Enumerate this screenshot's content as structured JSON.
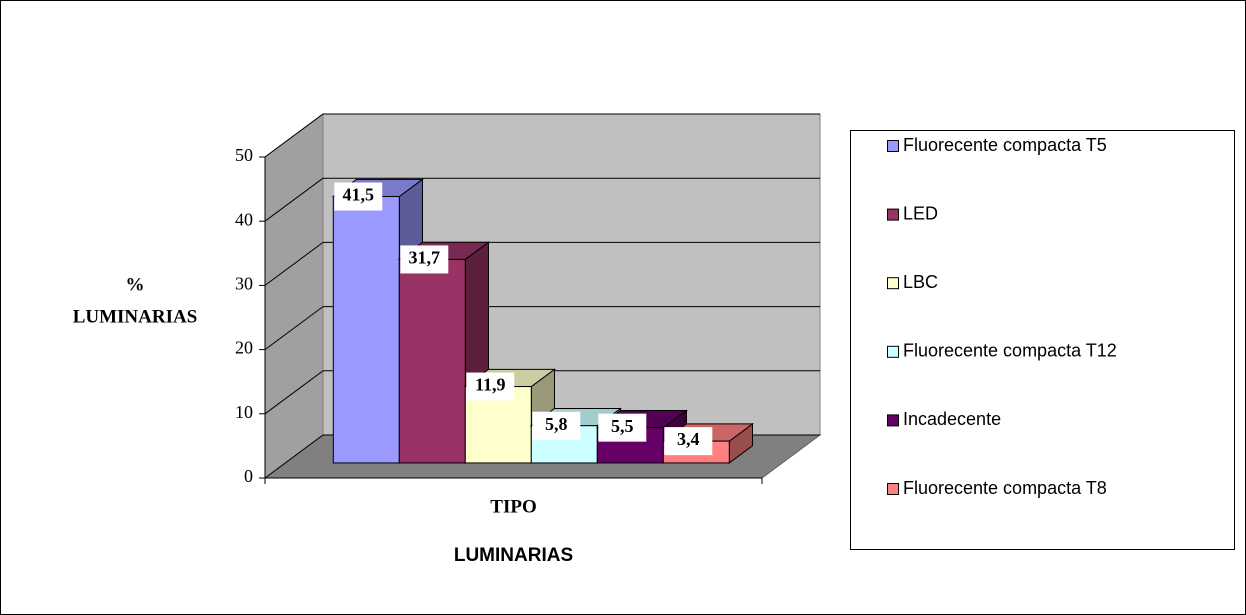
{
  "chart_data": {
    "type": "bar3d",
    "categories": [
      "TIPO"
    ],
    "x_label": "LUMINARIAS",
    "y_label_lines": [
      "%",
      "LUMINARIAS"
    ],
    "ylim": [
      0,
      50
    ],
    "yticks": [
      0,
      10,
      20,
      30,
      40,
      50
    ],
    "grid": true,
    "legend": "right",
    "series": [
      {
        "name": "Fluorecente compacta T5",
        "color": "#9999ff",
        "values": [
          41.5
        ],
        "value_labels": [
          "41,5"
        ]
      },
      {
        "name": "LED",
        "color": "#993366",
        "values": [
          31.7
        ],
        "value_labels": [
          "31,7"
        ]
      },
      {
        "name": "LBC",
        "color": "#ffffcc",
        "values": [
          11.9
        ],
        "value_labels": [
          "11,9"
        ]
      },
      {
        "name": "Fluorecente compacta T12",
        "color": "#ccffff",
        "values": [
          5.8
        ],
        "value_labels": [
          "5,8"
        ]
      },
      {
        "name": "Incadecente",
        "color": "#660066",
        "values": [
          5.5
        ],
        "value_labels": [
          "5,5"
        ]
      },
      {
        "name": "Fluorecente compacta T8",
        "color": "#ff8080",
        "values": [
          3.4
        ],
        "value_labels": [
          "3,4"
        ]
      }
    ]
  }
}
